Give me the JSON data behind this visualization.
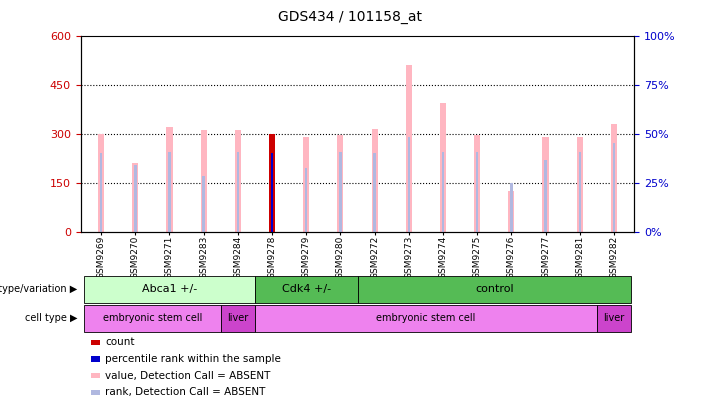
{
  "title": "GDS434 / 101158_at",
  "samples": [
    "GSM9269",
    "GSM9270",
    "GSM9271",
    "GSM9283",
    "GSM9284",
    "GSM9278",
    "GSM9279",
    "GSM9280",
    "GSM9272",
    "GSM9273",
    "GSM9274",
    "GSM9275",
    "GSM9276",
    "GSM9277",
    "GSM9281",
    "GSM9282"
  ],
  "values_absent": [
    300,
    210,
    320,
    310,
    310,
    290,
    290,
    295,
    315,
    510,
    395,
    295,
    125,
    290,
    290,
    330
  ],
  "rank_absent": [
    240,
    205,
    245,
    170,
    245,
    240,
    195,
    245,
    240,
    290,
    245,
    245,
    148,
    220,
    245,
    270
  ],
  "count": [
    0,
    0,
    0,
    0,
    0,
    300,
    0,
    0,
    0,
    0,
    0,
    0,
    0,
    0,
    0,
    0
  ],
  "percentile_rank": [
    0,
    0,
    0,
    0,
    0,
    240,
    0,
    0,
    0,
    0,
    0,
    0,
    0,
    0,
    0,
    0
  ],
  "ylim_left": [
    0,
    600
  ],
  "ylim_right": [
    0,
    100
  ],
  "yticks_left": [
    0,
    150,
    300,
    450,
    600
  ],
  "yticks_right": [
    0,
    25,
    50,
    75,
    100
  ],
  "color_value_absent": "#FFB6C1",
  "color_rank_absent": "#B0B8E0",
  "color_count": "#CC0000",
  "color_percentile": "#0000CC",
  "bg_plot": "#FFFFFF",
  "bg_fig": "#FFFFFF",
  "genotype_groups": [
    {
      "label": "Abca1 +/-",
      "start": 0,
      "end": 4,
      "color": "#CCFFCC"
    },
    {
      "label": "Cdk4 +/-",
      "start": 5,
      "end": 7,
      "color": "#55BB55"
    },
    {
      "label": "control",
      "start": 8,
      "end": 15,
      "color": "#55BB55"
    }
  ],
  "cell_groups": [
    {
      "label": "embryonic stem cell",
      "start": 0,
      "end": 3,
      "color": "#EE82EE"
    },
    {
      "label": "liver",
      "start": 4,
      "end": 4,
      "color": "#CC44CC"
    },
    {
      "label": "embryonic stem cell",
      "start": 5,
      "end": 14,
      "color": "#EE82EE"
    },
    {
      "label": "liver",
      "start": 15,
      "end": 15,
      "color": "#CC44CC"
    }
  ],
  "legend_items": [
    {
      "color": "#CC0000",
      "label": "count"
    },
    {
      "color": "#0000CC",
      "label": "percentile rank within the sample"
    },
    {
      "color": "#FFB6C1",
      "label": "value, Detection Call = ABSENT"
    },
    {
      "color": "#B0B8E0",
      "label": "rank, Detection Call = ABSENT"
    }
  ],
  "tick_color_left": "#CC0000",
  "tick_color_right": "#0000CC"
}
